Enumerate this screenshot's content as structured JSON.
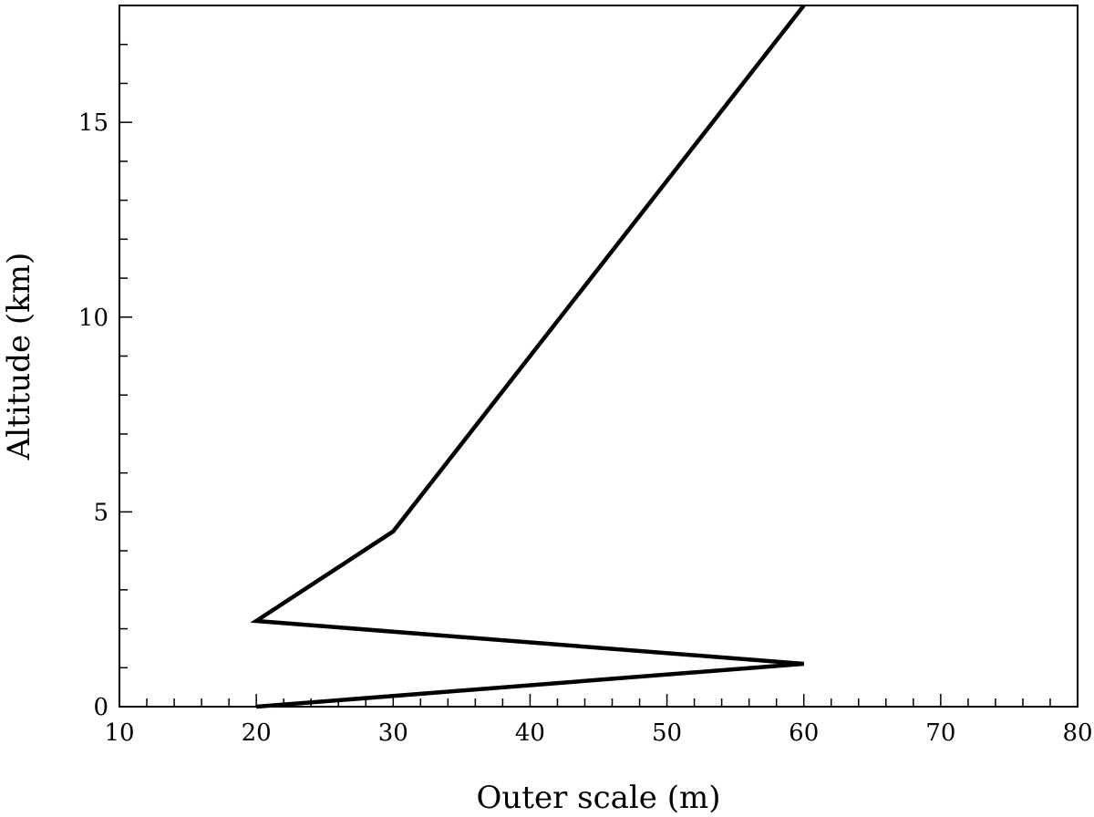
{
  "chart_data": {
    "type": "line",
    "title": "",
    "xlabel": "Outer scale (m)",
    "ylabel": "Altitude (km)",
    "xlim": [
      10,
      80
    ],
    "ylim": [
      0,
      18
    ],
    "x_ticks": [
      10,
      20,
      30,
      40,
      50,
      60,
      70,
      80
    ],
    "y_ticks": [
      0,
      5,
      10,
      15
    ],
    "grid": false,
    "legend": "none",
    "series": [
      {
        "color": "#000000",
        "points": [
          {
            "x": 20,
            "y": 0
          },
          {
            "x": 60,
            "y": 1.1
          },
          {
            "x": 20,
            "y": 2.2
          },
          {
            "x": 30,
            "y": 4.5
          },
          {
            "x": 60,
            "y": 18
          }
        ]
      }
    ]
  }
}
